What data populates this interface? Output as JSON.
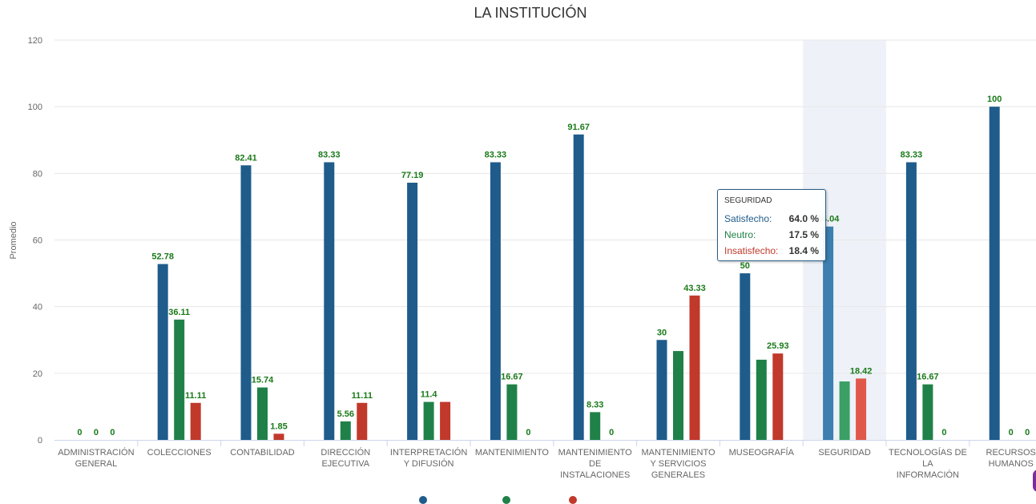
{
  "colors": {
    "satisfecho": "#1f5c8b",
    "neutro": "#208148",
    "insatisfecho": "#c0392b",
    "highlight_band": "#eef2f8",
    "label_green": "#1a7a1a"
  },
  "chart_data": {
    "type": "bar",
    "title": "LA INSTITUCIÓN",
    "xlabel": "",
    "ylabel": "Promedio",
    "ylim": [
      0,
      120
    ],
    "yticks": [
      0,
      20,
      40,
      60,
      80,
      100,
      120
    ],
    "grid": true,
    "categories": [
      [
        "ADMINISTRACIÓN",
        "GENERAL"
      ],
      [
        "COLECCIONES"
      ],
      [
        "CONTABILIDAD"
      ],
      [
        "DIRECCIÓN",
        "EJECUTIVA"
      ],
      [
        "INTERPRETACIÓN",
        "Y DIFUSIÓN"
      ],
      [
        "MANTENIMIENTO"
      ],
      [
        "MANTENIMIENTO",
        "DE",
        "INSTALACIONES"
      ],
      [
        "MANTENIMIENTO",
        "Y SERVICIOS",
        "GENERALES"
      ],
      [
        "MUSEOGRAFÍA"
      ],
      [
        "SEGURIDAD"
      ],
      [
        "TECNOLOGÍAS DE",
        "LA",
        "INFORMACIÓN"
      ],
      [
        "RECURSOS",
        "HUMANOS"
      ]
    ],
    "series": [
      {
        "name": "Satisfecho",
        "color": "#1f5c8b",
        "values": [
          0,
          52.78,
          82.41,
          83.33,
          77.19,
          83.33,
          91.67,
          30,
          50,
          64.04,
          83.33,
          100
        ],
        "labels": [
          "0",
          "52.78",
          "82.41",
          "83.33",
          "77.19",
          "83.33",
          "91.67",
          "30",
          "50",
          "64.04",
          "83.33",
          "100"
        ]
      },
      {
        "name": "Neutro",
        "color": "#208148",
        "values": [
          0,
          36.11,
          15.74,
          5.56,
          11.4,
          16.67,
          8.33,
          26.67,
          24.07,
          17.54,
          16.67,
          0
        ],
        "labels": [
          "0",
          "36.11",
          "15.74",
          "5.56",
          "11.4",
          "16.67",
          "8.33",
          "",
          "",
          "",
          "16.67",
          "0"
        ]
      },
      {
        "name": "Insatisfecho",
        "color": "#c0392b",
        "values": [
          0,
          11.11,
          1.85,
          11.11,
          11.4,
          0,
          0,
          43.33,
          25.93,
          18.42,
          0,
          0
        ],
        "labels": [
          "0",
          "11.11",
          "1.85",
          "11.11",
          "",
          "0",
          "0",
          "43.33",
          "25.93",
          "18.42",
          "0",
          "0"
        ]
      }
    ],
    "highlighted_category": 9
  },
  "tooltip": {
    "title": "SEGURIDAD",
    "rows": [
      {
        "name": "Satisfecho:",
        "value": "64.0 %"
      },
      {
        "name": "Neutro:",
        "value": "17.5 %"
      },
      {
        "name": "Insatisfecho:",
        "value": "18.4 %"
      }
    ]
  }
}
